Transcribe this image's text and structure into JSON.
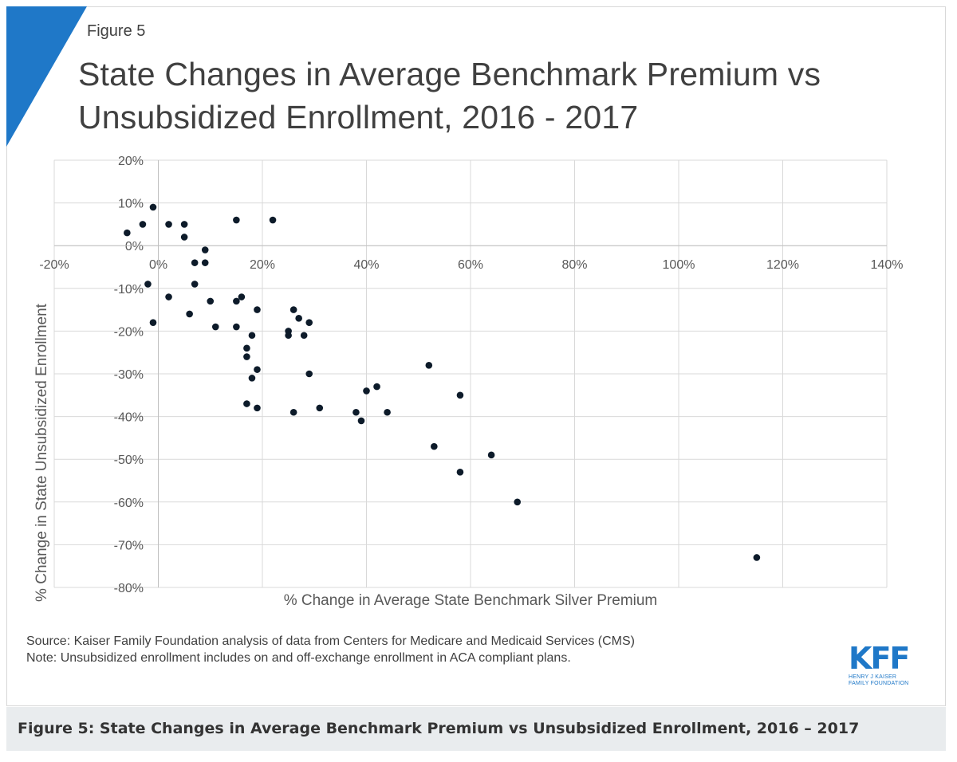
{
  "figure": {
    "label": "Figure 5",
    "title_line1": "State Changes in Average Benchmark Premium vs",
    "title_line2": "Unsubsidized Enrollment, 2016 - 2017",
    "accent_color": "#1f78c8"
  },
  "chart_data": {
    "type": "scatter",
    "title": "State Changes in Average Benchmark Premium vs Unsubsidized Enrollment, 2016 - 2017",
    "xlabel": "% Change in Average State Benchmark Silver Premium",
    "ylabel": "% Change in State Unsubsidized Enrollment",
    "xlim": [
      -20,
      140
    ],
    "ylim": [
      -80,
      20
    ],
    "x_ticks": [
      -20,
      0,
      20,
      40,
      60,
      80,
      100,
      120,
      140
    ],
    "y_ticks": [
      20,
      10,
      0,
      -10,
      -20,
      -30,
      -40,
      -50,
      -60,
      -70,
      -80
    ],
    "x_tick_labels": [
      "-20%",
      "0%",
      "20%",
      "40%",
      "60%",
      "80%",
      "100%",
      "120%",
      "140%"
    ],
    "y_tick_labels": [
      "20%",
      "10%",
      "0%",
      "-10%",
      "-20%",
      "-30%",
      "-40%",
      "-50%",
      "-60%",
      "-70%",
      "-80%"
    ],
    "grid": true,
    "marker_color": "#0d1b2a",
    "points": [
      {
        "x": -1,
        "y": 9
      },
      {
        "x": -3,
        "y": 5
      },
      {
        "x": -6,
        "y": 3
      },
      {
        "x": 2,
        "y": 5
      },
      {
        "x": 5,
        "y": 5
      },
      {
        "x": 5,
        "y": 2
      },
      {
        "x": 15,
        "y": 6
      },
      {
        "x": 22,
        "y": 6
      },
      {
        "x": 9,
        "y": -1
      },
      {
        "x": 7,
        "y": -4
      },
      {
        "x": 9,
        "y": -4
      },
      {
        "x": -2,
        "y": -9
      },
      {
        "x": 7,
        "y": -9
      },
      {
        "x": 2,
        "y": -12
      },
      {
        "x": 10,
        "y": -13
      },
      {
        "x": 15,
        "y": -13
      },
      {
        "x": 16,
        "y": -12
      },
      {
        "x": 6,
        "y": -16
      },
      {
        "x": -1,
        "y": -18
      },
      {
        "x": 11,
        "y": -19
      },
      {
        "x": 15,
        "y": -19
      },
      {
        "x": 19,
        "y": -15
      },
      {
        "x": 18,
        "y": -21
      },
      {
        "x": 17,
        "y": -24
      },
      {
        "x": 17,
        "y": -26
      },
      {
        "x": 19,
        "y": -29
      },
      {
        "x": 18,
        "y": -31
      },
      {
        "x": 17,
        "y": -37
      },
      {
        "x": 19,
        "y": -38
      },
      {
        "x": 26,
        "y": -15
      },
      {
        "x": 27,
        "y": -17
      },
      {
        "x": 29,
        "y": -18
      },
      {
        "x": 25,
        "y": -20
      },
      {
        "x": 25,
        "y": -21
      },
      {
        "x": 28,
        "y": -21
      },
      {
        "x": 29,
        "y": -30
      },
      {
        "x": 26,
        "y": -39
      },
      {
        "x": 31,
        "y": -38
      },
      {
        "x": 40,
        "y": -34
      },
      {
        "x": 42,
        "y": -33
      },
      {
        "x": 38,
        "y": -39
      },
      {
        "x": 39,
        "y": -41
      },
      {
        "x": 44,
        "y": -39
      },
      {
        "x": 52,
        "y": -28
      },
      {
        "x": 58,
        "y": -35
      },
      {
        "x": 53,
        "y": -47
      },
      {
        "x": 64,
        "y": -49
      },
      {
        "x": 58,
        "y": -53
      },
      {
        "x": 69,
        "y": -60
      },
      {
        "x": 115,
        "y": -73
      }
    ]
  },
  "notes": {
    "source": "Source: Kaiser Family Foundation analysis of data from Centers for Medicare and Medicaid Services (CMS)",
    "note": "Note: Unsubsidized enrollment includes on and off-exchange enrollment in ACA compliant plans."
  },
  "logo": {
    "letters": "KFF",
    "line1": "HENRY J KAISER",
    "line2": "FAMILY FOUNDATION"
  },
  "caption": "Figure 5: State Changes in Average Benchmark Premium vs Unsubsidized Enrollment, 2016 – 2017"
}
